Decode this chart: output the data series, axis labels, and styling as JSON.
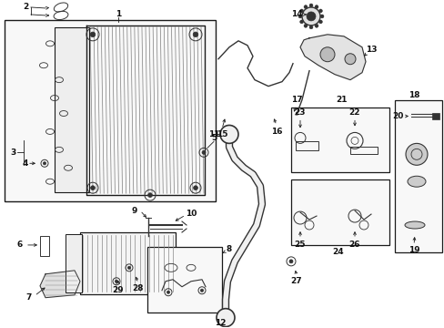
{
  "background": "#ffffff",
  "fw": 4.89,
  "fh": 3.6,
  "dpi": 100,
  "lc": "#1a1a1a",
  "pc": "#333333",
  "gc": "#888888"
}
